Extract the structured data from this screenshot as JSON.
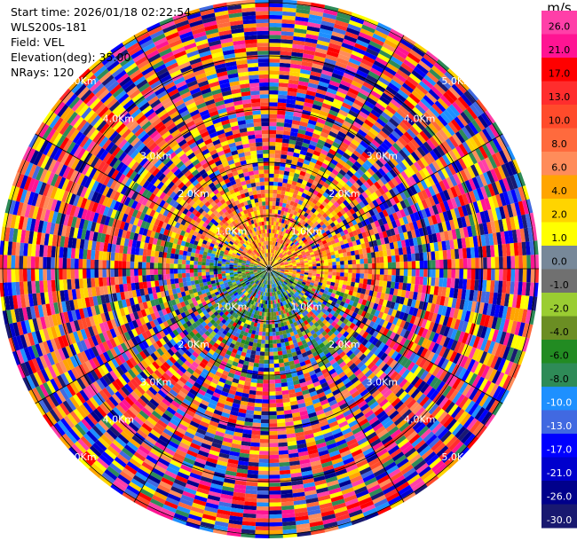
{
  "info": {
    "start_time": "Start time: 2026/01/18 02:22:54",
    "instrument": "WLS200s-181",
    "field": "Field: VEL",
    "elevation": "Elevation(deg): 35.00",
    "nrays": "NRays: 120"
  },
  "colorbar": {
    "unit": "m/s",
    "ticks": [
      "26.0",
      "21.0",
      "17.0",
      "13.0",
      "10.0",
      "8.0",
      "6.0",
      "4.0",
      "2.0",
      "1.0",
      "0.0",
      "-1.0",
      "-2.0",
      "-4.0",
      "-6.0",
      "-8.0",
      "-10.0",
      "-13.0",
      "-17.0",
      "-21.0",
      "-26.0",
      "-30.0"
    ],
    "colors": [
      "#ff3fa8",
      "#ff1493",
      "#ff0000",
      "#ff2d2d",
      "#ff4b2b",
      "#ff6a3d",
      "#ff8c5a",
      "#ffa500",
      "#ffd400",
      "#ffff00",
      "#778899",
      "#707070",
      "#9acd32",
      "#6b8e23",
      "#228b22",
      "#2e8b57",
      "#1e90ff",
      "#4169e1",
      "#0000ff",
      "#0000cd",
      "#00008b",
      "#191970"
    ]
  },
  "chart_data": {
    "type": "ppi",
    "field": "VEL",
    "unit": "m/s",
    "nrays": 120,
    "elevation_deg": 35.0,
    "range_ring_labels": [
      "1.0Km",
      "2.0Km",
      "3.0Km",
      "4.0Km",
      "5.0Km"
    ],
    "color_range": [
      -30.0,
      26.0
    ],
    "spokes_deg": [
      0,
      30,
      60,
      90,
      120,
      150,
      180,
      210,
      240,
      270,
      300,
      330
    ]
  }
}
